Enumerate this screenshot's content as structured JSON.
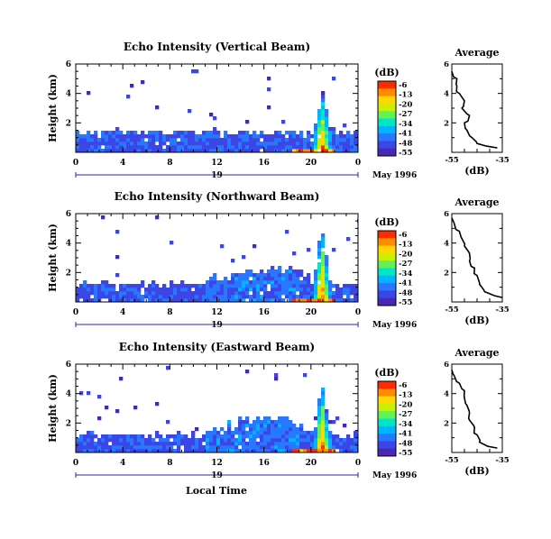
{
  "figure": {
    "x_axis_title": "Local Time",
    "date_label": "May 1996",
    "day_label": "19",
    "colorbar_unit": "(dB)",
    "profile_title": "Average",
    "profile_xlabel": "(dB)"
  },
  "colorbar": {
    "labels": [
      "-6",
      "-13",
      "-20",
      "-27",
      "-34",
      "-41",
      "-48",
      "-55"
    ],
    "colors": [
      "#ff2a00",
      "#ff8c00",
      "#ffd800",
      "#c8f000",
      "#5ff25a",
      "#00e6c8",
      "#00b4ff",
      "#2878ff",
      "#3c46e6",
      "#4a28b4"
    ]
  },
  "chart_data": [
    {
      "type": "heatmap",
      "title": "Echo Intensity (Vertical Beam)",
      "ylabel": "Height (km)",
      "xlim": [
        0,
        24
      ],
      "ylim": [
        0,
        6
      ],
      "x_ticks": [
        "0",
        "4",
        "8",
        "12",
        "16",
        "20",
        "0"
      ],
      "y_ticks": [
        "2",
        "4",
        "6"
      ],
      "layer_top_km": 1.4,
      "convective_hours": [
        20.5,
        21.5
      ],
      "max_echo_top_km": 3.9,
      "color_range_db": [
        -55,
        -6
      ],
      "profile": {
        "xlim": [
          -55,
          -35
        ],
        "x_ticks": [
          "-55",
          "-35"
        ],
        "y_ticks": [
          "2",
          "4",
          "6"
        ],
        "heights_km": [
          0.3,
          0.6,
          1.0,
          1.5,
          2.0,
          2.5,
          3.0,
          3.5,
          4.0,
          4.5,
          5.0,
          5.5
        ],
        "values_db": [
          -37,
          -45,
          -47,
          -49,
          -50,
          -48,
          -51,
          -50,
          -52,
          -53,
          -53,
          -55
        ]
      }
    },
    {
      "type": "heatmap",
      "title": "Echo Intensity (Northward Beam)",
      "ylabel": "Height (km)",
      "xlim": [
        0,
        24
      ],
      "ylim": [
        0,
        6
      ],
      "x_ticks": [
        "0",
        "4",
        "8",
        "12",
        "16",
        "20",
        "0"
      ],
      "y_ticks": [
        "2",
        "4",
        "6"
      ],
      "layer_top_km": 1.2,
      "convective_hours": [
        20.3,
        21.6
      ],
      "max_echo_top_km": 5.0,
      "color_range_db": [
        -55,
        -6
      ],
      "profile": {
        "xlim": [
          -55,
          -35
        ],
        "x_ticks": [
          "-55",
          "-35"
        ],
        "y_ticks": [
          "2",
          "4",
          "6"
        ],
        "heights_km": [
          0.3,
          0.7,
          1.2,
          1.8,
          2.3,
          2.8,
          3.3,
          3.8,
          4.3,
          4.8,
          5.3,
          5.7
        ],
        "values_db": [
          -35,
          -42,
          -44,
          -45,
          -46,
          -48,
          -48,
          -50,
          -51,
          -52,
          -54,
          -55
        ]
      }
    },
    {
      "type": "heatmap",
      "title": "Echo Intensity (Eastward Beam)",
      "ylabel": "Height (km)",
      "xlim": [
        0,
        24
      ],
      "ylim": [
        0,
        6
      ],
      "x_ticks": [
        "0",
        "4",
        "8",
        "12",
        "16",
        "20",
        "0"
      ],
      "y_ticks": [
        "2",
        "4",
        "6"
      ],
      "layer_top_km": 1.2,
      "convective_hours": [
        20.3,
        21.6
      ],
      "max_echo_top_km": 4.5,
      "color_range_db": [
        -55,
        -6
      ],
      "profile": {
        "xlim": [
          -55,
          -35
        ],
        "x_ticks": [
          "-55",
          "-35"
        ],
        "y_ticks": [
          "2",
          "4",
          "6"
        ],
        "heights_km": [
          0.3,
          0.7,
          1.2,
          1.7,
          2.2,
          2.7,
          3.2,
          3.7,
          4.2,
          4.7,
          5.2,
          5.6
        ],
        "values_db": [
          -37,
          -44,
          -45,
          -46,
          -48,
          -48,
          -49,
          -50,
          -50,
          -52,
          -54,
          -55
        ]
      }
    }
  ]
}
